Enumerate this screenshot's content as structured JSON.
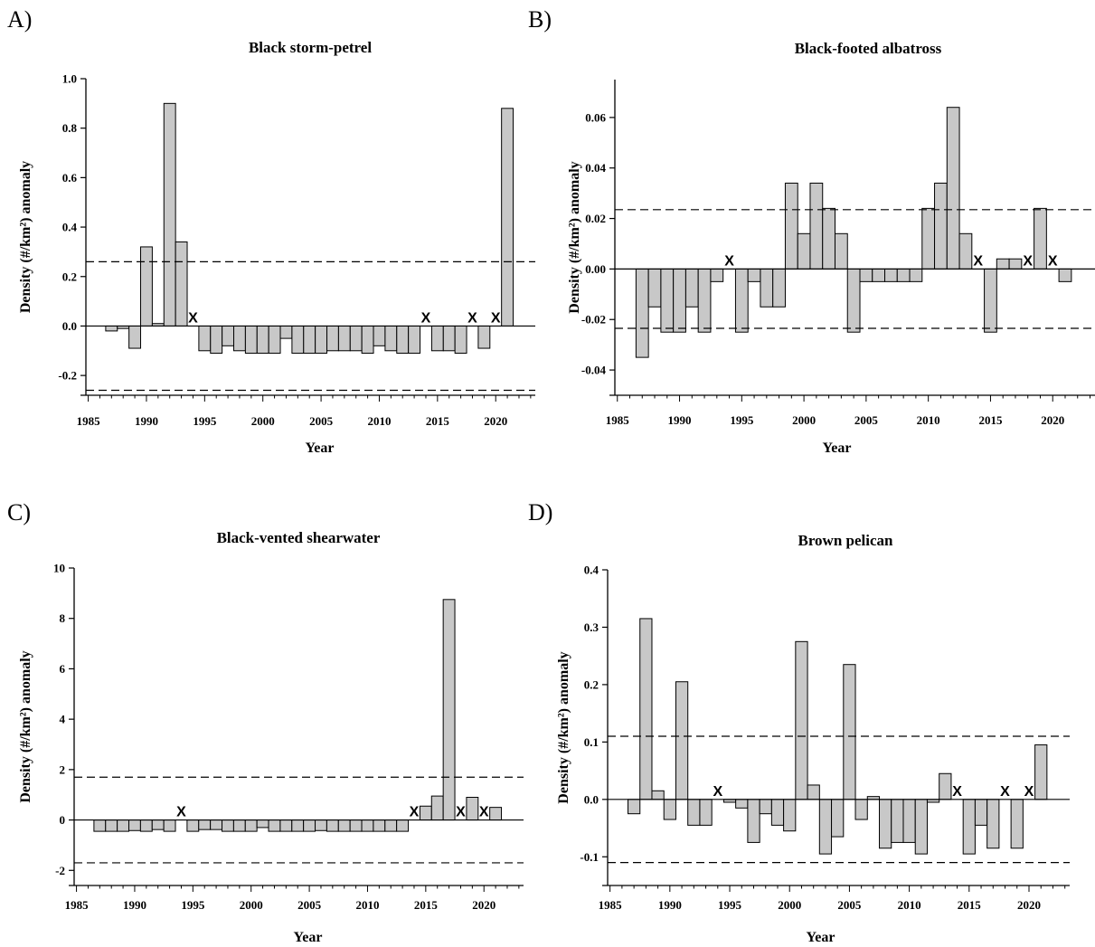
{
  "colors": {
    "bar_fill": "#c8c8c8",
    "bar_stroke": "#000000",
    "reference_line": "#000000"
  },
  "chart_data": [
    {
      "type": "bar",
      "panel_letter": "A)",
      "title": "Black storm-petrel",
      "xlabel": "Year",
      "ylabel": "Density (#/km²) anomaly",
      "xlim": [
        1984.8,
        2023.4
      ],
      "ylim": [
        -0.28,
        1.0
      ],
      "xticks": [
        1985,
        1990,
        1995,
        2000,
        2005,
        2010,
        2015,
        2020
      ],
      "yticks": [
        -0.2,
        0.0,
        0.2,
        0.4,
        0.6,
        0.8,
        1.0
      ],
      "ytick_labels": [
        "-0.2",
        "0.0",
        "0.2",
        "0.4",
        "0.6",
        "0.8",
        "1.0"
      ],
      "threshold_lines": [
        0.26,
        -0.26
      ],
      "missing_years": [
        1994,
        2014,
        2018,
        2020
      ],
      "missing_label": "X",
      "x": [
        1987,
        1988,
        1989,
        1990,
        1991,
        1992,
        1993,
        1995,
        1996,
        1997,
        1998,
        1999,
        2000,
        2001,
        2002,
        2003,
        2004,
        2005,
        2006,
        2007,
        2008,
        2009,
        2010,
        2011,
        2012,
        2013,
        2015,
        2016,
        2017,
        2019,
        2021
      ],
      "values": [
        -0.02,
        -0.01,
        -0.09,
        0.32,
        0.01,
        0.9,
        0.34,
        -0.1,
        -0.11,
        -0.08,
        -0.1,
        -0.11,
        -0.11,
        -0.11,
        -0.05,
        -0.11,
        -0.11,
        -0.11,
        -0.1,
        -0.1,
        -0.1,
        -0.11,
        -0.08,
        -0.1,
        -0.11,
        -0.11,
        -0.1,
        -0.1,
        -0.11,
        -0.09,
        0.88
      ]
    },
    {
      "type": "bar",
      "panel_letter": "B)",
      "title": "Black-footed albatross",
      "xlabel": "Year",
      "ylabel": "Density (#/km²) anomaly",
      "xlim": [
        1984.8,
        2023.4
      ],
      "ylim": [
        -0.05,
        0.075
      ],
      "xticks": [
        1985,
        1990,
        1995,
        2000,
        2005,
        2010,
        2015,
        2020
      ],
      "yticks": [
        -0.04,
        -0.02,
        0.0,
        0.02,
        0.04,
        0.06
      ],
      "ytick_labels": [
        "-0.04",
        "-0.02",
        "0.00",
        "0.02",
        "0.04",
        "0.06"
      ],
      "threshold_lines": [
        0.0235,
        -0.0235
      ],
      "missing_years": [
        1994,
        2014,
        2018,
        2020
      ],
      "missing_label": "X",
      "x": [
        1987,
        1988,
        1989,
        1990,
        1991,
        1992,
        1993,
        1995,
        1996,
        1997,
        1998,
        1999,
        2000,
        2001,
        2002,
        2003,
        2004,
        2005,
        2006,
        2007,
        2008,
        2009,
        2010,
        2011,
        2012,
        2013,
        2015,
        2016,
        2017,
        2019,
        2021
      ],
      "values": [
        -0.035,
        -0.015,
        -0.025,
        -0.025,
        -0.015,
        -0.025,
        -0.005,
        -0.025,
        -0.005,
        -0.015,
        -0.015,
        0.034,
        0.014,
        0.034,
        0.024,
        0.014,
        -0.025,
        -0.005,
        -0.005,
        -0.005,
        -0.005,
        -0.005,
        0.024,
        0.034,
        0.064,
        0.014,
        -0.025,
        0.004,
        0.004,
        0.024,
        -0.005
      ]
    },
    {
      "type": "bar",
      "panel_letter": "C)",
      "title": "Black-vented shearwater",
      "xlabel": "Year",
      "ylabel": "Density (#/km²) anomaly",
      "xlim": [
        1984.8,
        2023.4
      ],
      "ylim": [
        -2.6,
        10
      ],
      "xticks": [
        1985,
        1990,
        1995,
        2000,
        2005,
        2010,
        2015,
        2020
      ],
      "yticks": [
        -2,
        0,
        2,
        4,
        6,
        8,
        10
      ],
      "ytick_labels": [
        "-2",
        "0",
        "2",
        "4",
        "6",
        "8",
        "10"
      ],
      "threshold_lines": [
        1.7,
        -1.7
      ],
      "missing_years": [
        1994,
        2014,
        2018,
        2020
      ],
      "missing_label": "X",
      "x": [
        1987,
        1988,
        1989,
        1990,
        1991,
        1992,
        1993,
        1995,
        1996,
        1997,
        1998,
        1999,
        2000,
        2001,
        2002,
        2003,
        2004,
        2005,
        2006,
        2007,
        2008,
        2009,
        2010,
        2011,
        2012,
        2013,
        2015,
        2016,
        2017,
        2019,
        2021
      ],
      "values": [
        -0.45,
        -0.45,
        -0.45,
        -0.42,
        -0.45,
        -0.38,
        -0.45,
        -0.45,
        -0.38,
        -0.38,
        -0.45,
        -0.45,
        -0.45,
        -0.3,
        -0.45,
        -0.45,
        -0.45,
        -0.45,
        -0.42,
        -0.45,
        -0.45,
        -0.45,
        -0.45,
        -0.45,
        -0.45,
        -0.45,
        0.55,
        0.95,
        8.75,
        0.9,
        0.5
      ]
    },
    {
      "type": "bar",
      "panel_letter": "D)",
      "title": "Brown pelican",
      "xlabel": "Year",
      "ylabel": "Density (#/km²) anomaly",
      "xlim": [
        1984.8,
        2023.4
      ],
      "ylim": [
        -0.15,
        0.4
      ],
      "xticks": [
        1985,
        1990,
        1995,
        2000,
        2005,
        2010,
        2015,
        2020
      ],
      "yticks": [
        -0.1,
        0.0,
        0.1,
        0.2,
        0.3,
        0.4
      ],
      "ytick_labels": [
        "-0.1",
        "0.0",
        "0.1",
        "0.2",
        "0.3",
        "0.4"
      ],
      "threshold_lines": [
        0.11,
        -0.11
      ],
      "missing_years": [
        1994,
        2014,
        2018,
        2020
      ],
      "missing_label": "X",
      "x": [
        1987,
        1988,
        1989,
        1990,
        1991,
        1992,
        1993,
        1995,
        1996,
        1997,
        1998,
        1999,
        2000,
        2001,
        2002,
        2003,
        2004,
        2005,
        2006,
        2007,
        2008,
        2009,
        2010,
        2011,
        2012,
        2013,
        2015,
        2016,
        2017,
        2019,
        2021
      ],
      "values": [
        -0.025,
        0.315,
        0.015,
        -0.035,
        0.205,
        -0.045,
        -0.045,
        -0.005,
        -0.015,
        -0.075,
        -0.025,
        -0.045,
        -0.055,
        0.275,
        0.025,
        -0.095,
        -0.065,
        0.235,
        -0.035,
        0.005,
        -0.085,
        -0.075,
        -0.075,
        -0.095,
        -0.005,
        0.045,
        -0.095,
        -0.045,
        -0.085,
        -0.085,
        0.095
      ]
    }
  ]
}
